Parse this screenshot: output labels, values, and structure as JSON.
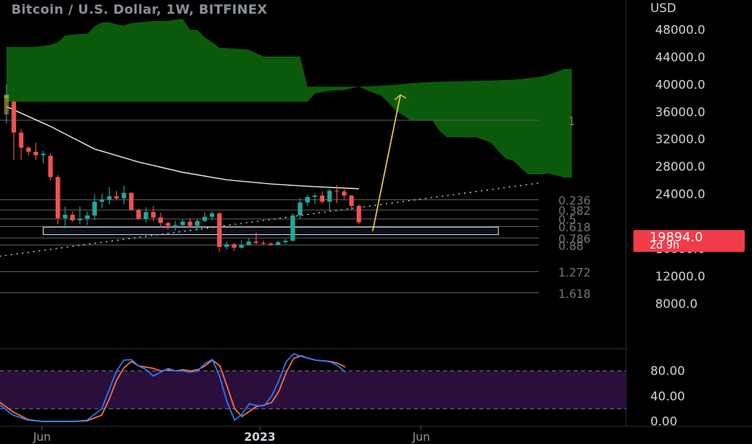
{
  "header": {
    "title": "Bitcoin / U.S. Dollar, 1W, BITFINEX",
    "currency": "USD"
  },
  "last_price": {
    "value": "19894.0",
    "countdown": "2d 9h",
    "color": "#f23b48"
  },
  "colors": {
    "up": "#26a69a",
    "down": "#ef5350",
    "kumo_bull": "#0b5a0b",
    "kumo_bear": "#8b0000",
    "sma": "#e8e8e8",
    "stoch_k": "#2979ff",
    "stoch_d": "#ff7043",
    "stoch_band": "#2a0f3d",
    "fib": "#5a5a5a",
    "arrow": "#e6c547"
  },
  "chart_data": {
    "type": "candlestick",
    "title": "Bitcoin / U.S. Dollar, 1W, BITFINEX",
    "ylim": [
      5800,
      50000
    ],
    "y_ticks": [
      "48000.0",
      "44000.0",
      "40000.0",
      "36000.0",
      "32000.0",
      "28000.0",
      "24000.0",
      "16000.0",
      "12000.0",
      "8000.0"
    ],
    "x_ticks": [
      "Jun",
      "2023",
      "Jun"
    ],
    "candles": [
      [
        0,
        38000,
        40000,
        34300,
        38500
      ],
      [
        1,
        37500,
        37700,
        29000,
        33000
      ],
      [
        2,
        33000,
        33500,
        29000,
        30800
      ],
      [
        3,
        30800,
        31000,
        29600,
        30200
      ],
      [
        4,
        30200,
        31500,
        29000,
        29700
      ],
      [
        5,
        29700,
        30300,
        28500,
        29900
      ],
      [
        6,
        29600,
        30000,
        26000,
        26500
      ],
      [
        7,
        26500,
        26800,
        19600,
        20500
      ],
      [
        8,
        20500,
        22200,
        19000,
        21000
      ],
      [
        9,
        21000,
        21500,
        19900,
        20200
      ],
      [
        10,
        20200,
        22200,
        19600,
        20400
      ],
      [
        11,
        20400,
        21500,
        19500,
        20900
      ],
      [
        12,
        20900,
        24000,
        20200,
        22900
      ],
      [
        13,
        22900,
        24100,
        22000,
        23200
      ],
      [
        14,
        23200,
        25000,
        22500,
        23700
      ],
      [
        15,
        23700,
        24500,
        23100,
        23400
      ],
      [
        16,
        23400,
        25200,
        22500,
        24200
      ],
      [
        17,
        24200,
        24300,
        21600,
        21700
      ],
      [
        18,
        21700,
        21900,
        20300,
        20400
      ],
      [
        19,
        20400,
        22100,
        19800,
        21400
      ],
      [
        20,
        21400,
        22300,
        20000,
        20600
      ],
      [
        21,
        20600,
        21300,
        19100,
        19800
      ],
      [
        22,
        19800,
        20000,
        18800,
        19400
      ],
      [
        23,
        19400,
        20100,
        18700,
        19500
      ],
      [
        24,
        19500,
        20300,
        19200,
        20000
      ],
      [
        25,
        20000,
        20500,
        19200,
        19400
      ],
      [
        26,
        19400,
        20400,
        18800,
        20100
      ],
      [
        27,
        20100,
        21400,
        19900,
        20700
      ],
      [
        28,
        20700,
        21500,
        20200,
        21200
      ],
      [
        29,
        21200,
        21400,
        15600,
        16300
      ],
      [
        30,
        16300,
        17100,
        15900,
        16700
      ],
      [
        31,
        16700,
        16900,
        15700,
        16200
      ],
      [
        32,
        16200,
        17300,
        16100,
        16600
      ],
      [
        33,
        16600,
        17600,
        16500,
        17100
      ],
      [
        34,
        17100,
        18400,
        16700,
        16900
      ],
      [
        35,
        16900,
        17200,
        16600,
        16800
      ],
      [
        36,
        16800,
        17000,
        16500,
        16600
      ],
      [
        37,
        16600,
        17200,
        16500,
        17000
      ],
      [
        38,
        17000,
        17500,
        16700,
        17200
      ],
      [
        39,
        17200,
        21200,
        17100,
        20900
      ],
      [
        40,
        20900,
        23500,
        20400,
        22800
      ],
      [
        41,
        22800,
        23900,
        22300,
        23600
      ],
      [
        42,
        23600,
        24200,
        22600,
        23800
      ],
      [
        43,
        23800,
        24400,
        22600,
        22900
      ],
      [
        44,
        22900,
        24800,
        21500,
        24500
      ],
      [
        45,
        24500,
        25300,
        22700,
        24400
      ],
      [
        46,
        24400,
        25000,
        23300,
        23800
      ],
      [
        47,
        23800,
        23900,
        21700,
        22300
      ],
      [
        48,
        22300,
        22500,
        19600,
        19894
      ]
    ],
    "sma": [
      [
        0,
        36800
      ],
      [
        6,
        33900
      ],
      [
        12,
        30600
      ],
      [
        18,
        28700
      ],
      [
        24,
        27200
      ],
      [
        30,
        26100
      ],
      [
        36,
        25500
      ],
      [
        42,
        25100
      ],
      [
        48,
        24800
      ]
    ],
    "kumo": {
      "span_a": [
        [
          0,
          45500
        ],
        [
          4,
          45500
        ],
        [
          6,
          45800
        ],
        [
          7,
          46200
        ],
        [
          8,
          47200
        ],
        [
          10,
          47400
        ],
        [
          11,
          47400
        ],
        [
          12,
          48500
        ],
        [
          13,
          49100
        ],
        [
          14,
          49100
        ],
        [
          15,
          48800
        ],
        [
          16,
          48600
        ],
        [
          17,
          49000
        ],
        [
          20,
          49300
        ],
        [
          22,
          49300
        ],
        [
          23,
          49500
        ],
        [
          24,
          49600
        ],
        [
          25,
          48000
        ],
        [
          26,
          48000
        ],
        [
          27,
          46900
        ],
        [
          28,
          46200
        ],
        [
          29,
          45400
        ],
        [
          33,
          45100
        ],
        [
          35,
          44100
        ],
        [
          40,
          44100
        ],
        [
          41,
          39700
        ],
        [
          48,
          39700
        ],
        [
          52,
          39900
        ],
        [
          55,
          40200
        ],
        [
          58,
          40400
        ],
        [
          62,
          40500
        ],
        [
          66,
          40600
        ],
        [
          70,
          40800
        ],
        [
          73,
          41200
        ],
        [
          75,
          41900
        ],
        [
          76,
          42300
        ],
        [
          77,
          42300
        ]
      ],
      "span_b": [
        [
          0,
          37500
        ],
        [
          41,
          37500
        ],
        [
          42,
          38700
        ],
        [
          44,
          39100
        ],
        [
          46,
          39200
        ],
        [
          48,
          39700
        ],
        [
          50,
          38800
        ],
        [
          51,
          38400
        ],
        [
          52,
          37400
        ],
        [
          53,
          36200
        ],
        [
          55,
          34800
        ],
        [
          58,
          34800
        ],
        [
          59,
          33200
        ],
        [
          60,
          32300
        ],
        [
          64,
          32300
        ],
        [
          66,
          31500
        ],
        [
          67,
          30300
        ],
        [
          68,
          29200
        ],
        [
          69,
          28900
        ],
        [
          71,
          26900
        ],
        [
          73,
          26900
        ],
        [
          74,
          27000
        ],
        [
          76,
          26400
        ],
        [
          77,
          26400
        ]
      ]
    },
    "fib_levels": [
      {
        "level": "1",
        "price": 34800
      },
      {
        "level": "0.236",
        "price": 23200
      },
      {
        "level": "0.382",
        "price": 21700
      },
      {
        "level": "0.5",
        "price": 20400
      },
      {
        "level": "0.618",
        "price": 19300
      },
      {
        "level": "0.786",
        "price": 17600
      },
      {
        "level": "0.88",
        "price": 16600
      },
      {
        "level": "1.272",
        "price": 12700
      },
      {
        "level": "1.618",
        "price": 9600
      }
    ],
    "trend_line": [
      [
        -4,
        14500
      ],
      [
        73,
        25700
      ]
    ],
    "zone": {
      "from_x": 5,
      "to_x": 67,
      "y_low": 18100,
      "y_high": 19200
    },
    "projection_arrow": {
      "from": [
        49,
        18600
      ],
      "to": [
        53,
        38500
      ]
    },
    "stochastic": {
      "ylim": [
        -5,
        110
      ],
      "y_ticks": [
        "80.00",
        "40.00",
        "0.00"
      ],
      "bands": [
        20,
        80
      ],
      "k": [
        [
          0,
          28
        ],
        [
          2,
          10
        ],
        [
          4,
          2
        ],
        [
          6,
          0
        ],
        [
          8,
          0
        ],
        [
          10,
          0
        ],
        [
          12,
          2
        ],
        [
          14,
          20
        ],
        [
          15,
          50
        ],
        [
          16,
          80
        ],
        [
          17,
          97
        ],
        [
          18,
          98
        ],
        [
          19,
          88
        ],
        [
          20,
          82
        ],
        [
          21,
          72
        ],
        [
          22,
          78
        ],
        [
          23,
          84
        ],
        [
          24,
          80
        ],
        [
          25,
          80
        ],
        [
          26,
          78
        ],
        [
          27,
          80
        ],
        [
          28,
          92
        ],
        [
          29,
          98
        ],
        [
          30,
          70
        ],
        [
          31,
          30
        ],
        [
          32,
          2
        ],
        [
          33,
          12
        ],
        [
          34,
          28
        ],
        [
          35,
          25
        ],
        [
          36,
          25
        ],
        [
          37,
          40
        ],
        [
          38,
          65
        ],
        [
          39,
          95
        ],
        [
          40,
          107
        ],
        [
          41,
          103
        ],
        [
          42,
          100
        ],
        [
          43,
          97
        ],
        [
          44,
          96
        ],
        [
          45,
          94
        ],
        [
          46,
          88
        ],
        [
          47,
          78
        ]
      ],
      "d": [
        [
          0,
          32
        ],
        [
          2,
          15
        ],
        [
          4,
          3
        ],
        [
          6,
          0
        ],
        [
          8,
          0
        ],
        [
          10,
          0
        ],
        [
          12,
          1
        ],
        [
          14,
          10
        ],
        [
          15,
          35
        ],
        [
          16,
          65
        ],
        [
          17,
          85
        ],
        [
          18,
          95
        ],
        [
          19,
          88
        ],
        [
          20,
          86
        ],
        [
          21,
          84
        ],
        [
          22,
          80
        ],
        [
          23,
          82
        ],
        [
          24,
          80
        ],
        [
          25,
          82
        ],
        [
          26,
          80
        ],
        [
          27,
          82
        ],
        [
          28,
          88
        ],
        [
          29,
          97
        ],
        [
          30,
          88
        ],
        [
          31,
          55
        ],
        [
          32,
          20
        ],
        [
          33,
          8
        ],
        [
          34,
          16
        ],
        [
          35,
          24
        ],
        [
          36,
          26
        ],
        [
          37,
          30
        ],
        [
          38,
          48
        ],
        [
          39,
          78
        ],
        [
          40,
          100
        ],
        [
          41,
          104
        ],
        [
          42,
          100
        ],
        [
          43,
          97
        ],
        [
          44,
          96
        ],
        [
          45,
          95
        ],
        [
          46,
          92
        ],
        [
          47,
          86
        ]
      ]
    }
  }
}
